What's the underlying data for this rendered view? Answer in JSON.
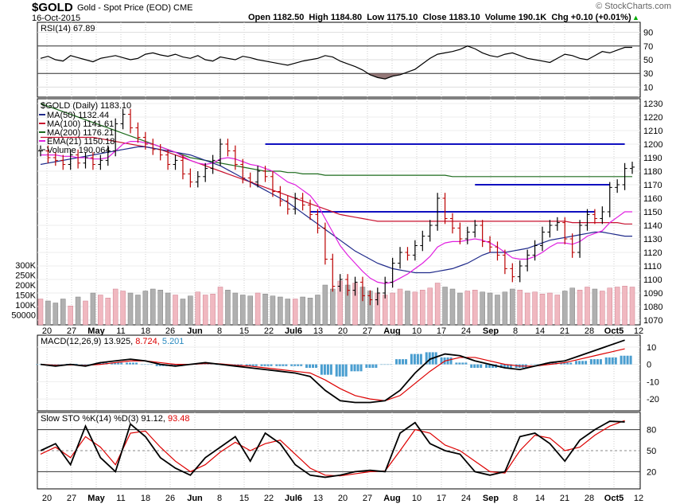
{
  "header": {
    "symbol": "$GOLD",
    "description": "Gold - Spot Price (EOD)",
    "exchange": "CME",
    "date": "16-Oct-2015",
    "ohlc_line": "Open 1182.50  High 1184.80  Low 1175.10  Close 1183.10  Volume 190.1K  Chg +0.10 (+0.01%)",
    "chg_arrow": "▲",
    "logo": "© StockCharts.com"
  },
  "colors": {
    "ma50": "#1f2a8a",
    "ma100": "#c8102e",
    "ma200": "#1d6b1d",
    "ema21": "#e020e0",
    "volume_up": "#f0b8c0",
    "volume_down": "#b0b0b0",
    "resistance": "#1010c0",
    "macd_hist": "#4a9ed0",
    "rsi_fill": "#8a6a6a"
  },
  "chart_data": [
    {
      "type": "line",
      "title": "RSI(14) 67.89",
      "ylim": [
        0,
        100
      ],
      "yticks": [
        10,
        30,
        50,
        70,
        90
      ],
      "reference_lines": [
        30,
        70
      ],
      "x": [
        0,
        2,
        4,
        6,
        8,
        10,
        12,
        14,
        16,
        18,
        20,
        22,
        24,
        26,
        28,
        30,
        32,
        34,
        36,
        38,
        40,
        42,
        44,
        46,
        48,
        50,
        52,
        54,
        56,
        58,
        60,
        62,
        64,
        66,
        68,
        70,
        72,
        74,
        76,
        78,
        80,
        82,
        84,
        86,
        88,
        90,
        92,
        94,
        96,
        98,
        100,
        102,
        104,
        106,
        108,
        110,
        112,
        114,
        116,
        118,
        120,
        122,
        124,
        126,
        128,
        130,
        132,
        134,
        136,
        138,
        140,
        142,
        144,
        146,
        148,
        150,
        152,
        154,
        156,
        158
      ],
      "values": [
        52,
        55,
        50,
        48,
        56,
        53,
        50,
        47,
        52,
        54,
        56,
        53,
        50,
        52,
        58,
        60,
        57,
        55,
        58,
        54,
        52,
        56,
        50,
        48,
        54,
        52,
        50,
        55,
        53,
        50,
        48,
        46,
        44,
        42,
        45,
        48,
        50,
        52,
        56,
        54,
        48,
        44,
        40,
        35,
        28,
        24,
        22,
        26,
        28,
        32,
        36,
        44,
        52,
        58,
        60,
        62,
        65,
        70,
        66,
        60,
        56,
        54,
        58,
        60,
        56,
        52,
        50,
        48,
        46,
        52,
        58,
        56,
        52,
        50,
        56,
        62,
        60,
        64,
        68,
        68
      ],
      "series": [
        {
          "name": "RSI(14)",
          "current": 67.89
        }
      ]
    },
    {
      "type": "line",
      "title": "$GOLD (Daily) 1183.10",
      "ylim": [
        1070,
        1230
      ],
      "yticks": [
        1070,
        1080,
        1090,
        1100,
        1110,
        1120,
        1130,
        1140,
        1150,
        1160,
        1170,
        1180,
        1190,
        1200,
        1210,
        1220,
        1230
      ],
      "volume_ticks": [
        "50000",
        "100K",
        "150K",
        "200K",
        "250K",
        "300K"
      ],
      "xlabels": [
        "20",
        "27",
        "May",
        "11",
        "18",
        "26",
        "Jun",
        "8",
        "15",
        "22",
        "Jul6",
        "13",
        "20",
        "27",
        "Aug",
        "10",
        "17",
        "24",
        "Sep",
        "8",
        "14",
        "21",
        "28",
        "Oct5",
        "12"
      ],
      "legend": [
        {
          "name": "$GOLD (Daily)",
          "value": "1183.10"
        },
        {
          "name": "MA(50)",
          "value": "1132.44"
        },
        {
          "name": "MA(100)",
          "value": "1141.61"
        },
        {
          "name": "MA(200)",
          "value": "1176.21"
        },
        {
          "name": "EMA(21)",
          "value": "1150.18"
        },
        {
          "name": "Volume",
          "value": "190,064"
        }
      ],
      "x": [
        0,
        2,
        4,
        6,
        8,
        10,
        12,
        14,
        16,
        18,
        20,
        22,
        24,
        26,
        28,
        30,
        32,
        34,
        36,
        38,
        40,
        42,
        44,
        46,
        48,
        50,
        52,
        54,
        56,
        58,
        60,
        62,
        64,
        66,
        68,
        70,
        72,
        74,
        76,
        78,
        80,
        82,
        84,
        86,
        88,
        90,
        92,
        94,
        96,
        98,
        100,
        102,
        104,
        106,
        108,
        110,
        112,
        114,
        116,
        118,
        120,
        122,
        124,
        126,
        128,
        130,
        132,
        134,
        136,
        138,
        140,
        142,
        144,
        146,
        148,
        150,
        152,
        154,
        156,
        158
      ],
      "close": [
        1195,
        1190,
        1188,
        1185,
        1192,
        1186,
        1190,
        1185,
        1188,
        1195,
        1215,
        1222,
        1212,
        1205,
        1200,
        1196,
        1192,
        1185,
        1188,
        1178,
        1172,
        1176,
        1182,
        1188,
        1200,
        1195,
        1185,
        1175,
        1172,
        1180,
        1176,
        1165,
        1158,
        1152,
        1160,
        1155,
        1148,
        1138,
        1115,
        1095,
        1100,
        1092,
        1098,
        1088,
        1085,
        1090,
        1098,
        1112,
        1120,
        1118,
        1125,
        1132,
        1140,
        1160,
        1145,
        1138,
        1130,
        1135,
        1140,
        1128,
        1124,
        1118,
        1108,
        1102,
        1110,
        1118,
        1125,
        1135,
        1140,
        1142,
        1130,
        1120,
        1140,
        1148,
        1145,
        1150,
        1168,
        1170,
        1182,
        1183
      ],
      "volume_k": [
        130,
        120,
        110,
        130,
        95,
        140,
        120,
        160,
        150,
        135,
        180,
        170,
        160,
        150,
        170,
        180,
        175,
        160,
        150,
        130,
        145,
        165,
        150,
        155,
        190,
        175,
        160,
        150,
        145,
        160,
        155,
        145,
        140,
        130,
        130,
        140,
        135,
        150,
        200,
        180,
        220,
        200,
        210,
        190,
        170,
        160,
        150,
        160,
        180,
        170,
        165,
        175,
        185,
        210,
        190,
        180,
        160,
        170,
        175,
        165,
        160,
        150,
        165,
        180,
        175,
        160,
        165,
        155,
        160,
        150,
        170,
        185,
        175,
        190,
        180,
        170,
        185,
        190,
        195,
        190
      ],
      "ma50": [
        1185,
        1186,
        1187,
        1188,
        1189,
        1190,
        1191,
        1192,
        1193,
        1194,
        1195,
        1196,
        1197,
        1198,
        1198,
        1197,
        1196,
        1195,
        1194,
        1193,
        1192,
        1190,
        1188,
        1186,
        1184,
        1181,
        1178,
        1175,
        1172,
        1169,
        1166,
        1163,
        1160,
        1157,
        1153,
        1149,
        1145,
        1141,
        1137,
        1133,
        1129,
        1125,
        1121,
        1118,
        1115,
        1112,
        1110,
        1108,
        1107,
        1106,
        1105,
        1105,
        1105,
        1106,
        1107,
        1108,
        1110,
        1112,
        1115,
        1118,
        1120,
        1120,
        1120,
        1121,
        1122,
        1123,
        1125,
        1127,
        1129,
        1130,
        1131,
        1132,
        1133,
        1134,
        1135,
        1135,
        1134,
        1133,
        1132,
        1132
      ],
      "ma100": [
        1205,
        1205,
        1205,
        1205,
        1205,
        1205,
        1205,
        1205,
        1204,
        1203,
        1202,
        1201,
        1200,
        1199,
        1198,
        1197,
        1196,
        1194,
        1192,
        1190,
        1188,
        1186,
        1184,
        1182,
        1180,
        1178,
        1176,
        1174,
        1172,
        1170,
        1168,
        1166,
        1164,
        1162,
        1160,
        1158,
        1156,
        1154,
        1152,
        1150,
        1148,
        1147,
        1146,
        1145,
        1144,
        1143,
        1143,
        1143,
        1143,
        1143,
        1143,
        1143,
        1143,
        1143,
        1143,
        1143,
        1143,
        1143,
        1143,
        1143,
        1143,
        1143,
        1143,
        1143,
        1143,
        1143,
        1143,
        1143,
        1143,
        1143,
        1143,
        1142,
        1142,
        1142,
        1142,
        1142,
        1142,
        1142,
        1141,
        1141
      ],
      "ma200": [
        1230,
        1228,
        1226,
        1224,
        1222,
        1220,
        1218,
        1216,
        1214,
        1212,
        1210,
        1208,
        1206,
        1204,
        1202,
        1200,
        1198,
        1196,
        1194,
        1192,
        1190,
        1189,
        1188,
        1187,
        1186,
        1185,
        1184,
        1183,
        1182,
        1181,
        1180,
        1180,
        1180,
        1179,
        1179,
        1178,
        1178,
        1178,
        1177,
        1177,
        1177,
        1177,
        1177,
        1177,
        1177,
        1177,
        1177,
        1177,
        1177,
        1177,
        1177,
        1177,
        1177,
        1177,
        1177,
        1176,
        1176,
        1176,
        1176,
        1176,
        1176,
        1176,
        1176,
        1176,
        1176,
        1176,
        1176,
        1176,
        1176,
        1176,
        1176,
        1176,
        1176,
        1176,
        1176,
        1176,
        1176,
        1176,
        1176,
        1176
      ],
      "ema21": [
        1192,
        1192,
        1192,
        1191,
        1191,
        1190,
        1190,
        1189,
        1189,
        1190,
        1195,
        1200,
        1202,
        1202,
        1201,
        1200,
        1198,
        1196,
        1194,
        1191,
        1188,
        1186,
        1185,
        1186,
        1189,
        1190,
        1189,
        1187,
        1185,
        1184,
        1182,
        1180,
        1176,
        1172,
        1170,
        1166,
        1162,
        1155,
        1145,
        1135,
        1125,
        1118,
        1112,
        1106,
        1101,
        1098,
        1097,
        1098,
        1101,
        1104,
        1108,
        1112,
        1117,
        1124,
        1127,
        1128,
        1128,
        1129,
        1130,
        1129,
        1127,
        1124,
        1120,
        1116,
        1115,
        1115,
        1117,
        1120,
        1124,
        1127,
        1127,
        1126,
        1128,
        1132,
        1134,
        1136,
        1142,
        1146,
        1150,
        1150
      ],
      "resistance_levels": [
        1200,
        1170,
        1150
      ]
    },
    {
      "type": "line",
      "title": "MACD(12,26,9) 13.925, 8.724, 5.201",
      "ylim": [
        -25,
        15
      ],
      "yticks": [
        -20,
        -10,
        0,
        10
      ],
      "series": [
        {
          "name": "MACD(12,26,9)",
          "current": 13.925
        },
        {
          "name": "Signal",
          "current": 8.724
        },
        {
          "name": "Histogram",
          "current": 5.201
        }
      ],
      "x": [
        0,
        4,
        8,
        12,
        16,
        20,
        24,
        28,
        32,
        36,
        40,
        44,
        48,
        52,
        56,
        60,
        64,
        68,
        72,
        76,
        80,
        84,
        88,
        92,
        96,
        100,
        104,
        108,
        112,
        116,
        120,
        124,
        128,
        132,
        136,
        140,
        144,
        148,
        152,
        156
      ],
      "macd": [
        0,
        -1,
        0,
        -1,
        1,
        2,
        3,
        2,
        0,
        -1,
        0,
        1,
        0,
        -1,
        -2,
        -3,
        -4,
        -5,
        -7,
        -15,
        -21,
        -22,
        -22,
        -21,
        -15,
        -5,
        3,
        6,
        5,
        2,
        0,
        -2,
        -3,
        -1,
        1,
        2,
        5,
        8,
        11,
        14
      ],
      "signal": [
        0,
        -0.5,
        -0.3,
        -0.6,
        0,
        1,
        2,
        2,
        1,
        0,
        0,
        0.5,
        0.3,
        -0.5,
        -1,
        -2,
        -3,
        -4,
        -5,
        -9,
        -14,
        -18,
        -20,
        -21,
        -18,
        -11,
        -4,
        2,
        4,
        4,
        2,
        0,
        -1,
        -1,
        0,
        1,
        3,
        5,
        7,
        9
      ]
    },
    {
      "type": "line",
      "title": "Slow STO %K(14) %D(3) 91.12, 93.48",
      "ylim": [
        0,
        100
      ],
      "yticks": [
        20,
        50,
        80
      ],
      "reference_lines": [
        20,
        50,
        80
      ],
      "series": [
        {
          "name": "%K(14)",
          "current": 91.12
        },
        {
          "name": "%D(3)",
          "current": 93.48
        }
      ],
      "x": [
        0,
        4,
        8,
        12,
        16,
        20,
        24,
        28,
        32,
        36,
        40,
        44,
        48,
        52,
        56,
        60,
        64,
        68,
        72,
        76,
        80,
        84,
        88,
        92,
        96,
        100,
        104,
        108,
        112,
        116,
        120,
        124,
        128,
        132,
        136,
        140,
        144,
        148,
        152,
        156
      ],
      "k": [
        50,
        60,
        30,
        85,
        40,
        20,
        88,
        70,
        40,
        25,
        15,
        40,
        55,
        70,
        35,
        75,
        60,
        30,
        15,
        12,
        15,
        20,
        22,
        20,
        75,
        90,
        60,
        50,
        45,
        20,
        15,
        20,
        70,
        75,
        60,
        35,
        65,
        80,
        92,
        91
      ],
      "d": [
        45,
        55,
        40,
        70,
        55,
        30,
        75,
        78,
        55,
        35,
        20,
        30,
        48,
        62,
        50,
        60,
        65,
        45,
        25,
        15,
        14,
        17,
        20,
        21,
        50,
        80,
        75,
        58,
        50,
        35,
        20,
        18,
        50,
        72,
        68,
        50,
        55,
        72,
        85,
        93
      ]
    }
  ],
  "panels": {
    "rsi_label": "RSI(14) 67.89",
    "price_label": "$GOLD (Daily) 1183.10",
    "macd_label_prefix": "MACD(12,26,9)",
    "macd_val1": "13.925,",
    "macd_val2": "8.724,",
    "macd_val3": "5.201",
    "sto_label_prefix": "Slow STO %K(14) %D(3)",
    "sto_val1": "91.12,",
    "sto_val2": "93.48",
    "legend_ma50": "MA(50) 1132.44",
    "legend_ma100": "MA(100) 1141.61",
    "legend_ma200": "MA(200) 1176.21",
    "legend_ema21": "EMA(21) 1150.18",
    "legend_volume": "Volume 190,064"
  }
}
